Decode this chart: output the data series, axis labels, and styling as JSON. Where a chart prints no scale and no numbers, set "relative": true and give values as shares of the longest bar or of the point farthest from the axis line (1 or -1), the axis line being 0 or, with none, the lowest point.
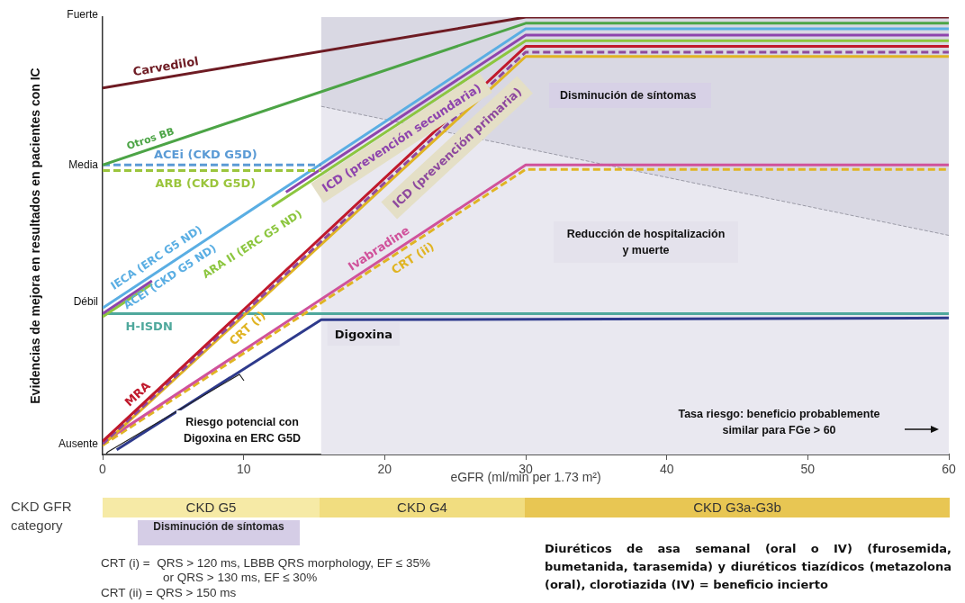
{
  "chart_data": {
    "type": "line",
    "relative": true,
    "xlabel": "eGFR (ml/min per 1.73 m²)",
    "ylabel": "Evidencias de mejora en resultados en pacientes con IC",
    "xlim": [
      0,
      60
    ],
    "xticks": [
      0,
      10,
      20,
      30,
      40,
      50,
      60
    ],
    "legend": false,
    "marker": "none",
    "series": [
      {
        "name": "Carvedilol",
        "color": "#6e1b23",
        "x": [
          0,
          30,
          60
        ],
        "values": [
          0.838,
          1.0,
          1.0
        ]
      },
      {
        "name": "Otros BB",
        "color": "#4ca446",
        "x": [
          0,
          30,
          60
        ],
        "values": [
          0.662,
          0.986,
          0.986
        ]
      },
      {
        "name": "ACEi (CKD G5D)",
        "color": "#5b9bd5",
        "line_style": "dashed",
        "x": [
          0,
          15.5
        ],
        "values": [
          0.662,
          0.662
        ]
      },
      {
        "name": "ARB (CKD G5D)",
        "color": "#9bc53d",
        "line_style": "dashed",
        "x": [
          0,
          15.5
        ],
        "values": [
          0.649,
          0.649
        ]
      },
      {
        "name": "IECA (ERC G5 ND)",
        "color": "#5aaee3",
        "x": [
          0,
          30,
          60
        ],
        "values": [
          0.335,
          0.973,
          0.973
        ]
      },
      {
        "name": "ICD (prevención secundaria)",
        "color": "#8e44ad",
        "x": [
          0,
          3.5,
          8,
          13,
          30,
          60
        ],
        "values": [
          0.322,
          0.397,
          null,
          0.6,
          0.959,
          0.959
        ]
      },
      {
        "name": "ARA II (ERC G5 ND)",
        "color": "#8cc63f",
        "x": [
          0,
          3.5,
          8,
          12,
          30,
          60
        ],
        "values": [
          0.315,
          0.39,
          null,
          0.567,
          0.946,
          0.946
        ]
      },
      {
        "name": "MRA",
        "color": "#c0192c",
        "x": [
          0,
          30,
          60
        ],
        "values": [
          0.03,
          0.933,
          0.933
        ]
      },
      {
        "name": "ICD (prevención primaria)",
        "color": "#8e4a9e",
        "line_style": "dashed",
        "x": [
          0,
          30,
          60
        ],
        "values": [
          0.024,
          0.92,
          0.92
        ]
      },
      {
        "name": "CRT (i)",
        "color": "#e0b423",
        "x": [
          0,
          30,
          60
        ],
        "values": [
          0.021,
          0.91,
          0.91
        ]
      },
      {
        "name": "Ivabradine",
        "color": "#d0529b",
        "x": [
          0,
          30,
          60
        ],
        "values": [
          0.027,
          0.662,
          0.662
        ]
      },
      {
        "name": "CRT (ii)",
        "color": "#e0b423",
        "line_style": "dashed",
        "x": [
          0,
          30,
          60
        ],
        "values": [
          0.021,
          0.652,
          0.652
        ]
      },
      {
        "name": "H-ISDN",
        "color": "#4fa89c",
        "x": [
          0,
          60
        ],
        "values": [
          0.322,
          0.322
        ]
      },
      {
        "name": "Digoxina",
        "color": "#2e3a8c",
        "x": [
          1,
          15.5,
          60
        ],
        "values": [
          0.011,
          0.308,
          0.312
        ]
      },
      {
        "type": "area",
        "color": "#e9e8f0",
        "line_style": "dashed",
        "x": [
          15.5,
          60
        ],
        "values": [
          0.796,
          0.501
        ]
      }
    ],
    "bands": [
      {
        "axis": "x",
        "from": 15.5,
        "to": 60,
        "color": "#d9d8e3"
      }
    ],
    "annotations": [
      "Disminución de síntomas",
      "Reducción de hospitalización y muerte",
      "Tasa riesgo: beneficio probablemente similar para FGe > 60",
      "Riesgo potencial con Digoxina en ERC G5D",
      "ACEi (CKD G5 ND)",
      "Ausente",
      "Débil",
      "Media",
      "Fuerte",
      "CKD GFR category",
      "CKD G5",
      "CKD G4",
      "CKD G3a-G3b",
      "Disminución de síntomas",
      "CRT (i) =  QRS > 120 ms, LBBB QRS morphology, EF ≤ 35%",
      "or QRS > 130 ms, EF ≤ 30%",
      "CRT (ii) = QRS > 150 ms",
      "Diuréticos de asa semanal (oral o IV) (furosemida, bumetanida, tarasemida) y diuréticos tiazídicos (metazolona (oral), clorotiazida (IV) = beneficio incierto"
    ]
  }
}
